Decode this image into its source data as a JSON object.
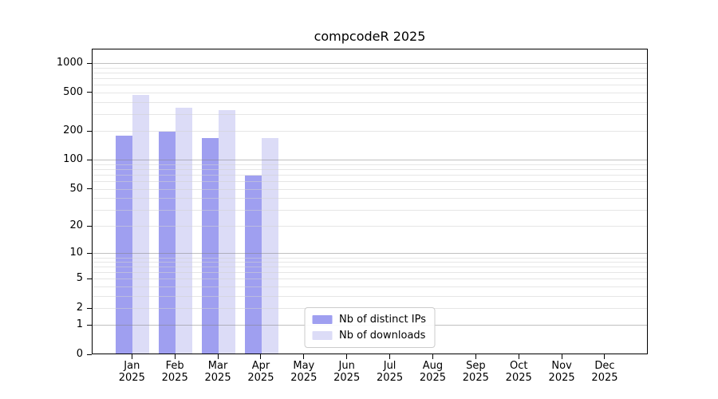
{
  "chart_data": {
    "type": "bar",
    "title": "compcodeR 2025",
    "categories": [
      "Jan 2025",
      "Feb 2025",
      "Mar 2025",
      "Apr 2025",
      "May 2025",
      "Jun 2025",
      "Jul 2025",
      "Aug 2025",
      "Sep 2025",
      "Oct 2025",
      "Nov 2025",
      "Dec 2025"
    ],
    "series": [
      {
        "name": "Nb of distinct IPs",
        "color": "#9f9ff0",
        "values": [
          182,
          199,
          173,
          70,
          null,
          null,
          null,
          null,
          null,
          null,
          null,
          null
        ]
      },
      {
        "name": "Nb of downloads",
        "color": "#dcdcf7",
        "values": [
          485,
          355,
          335,
          172,
          null,
          null,
          null,
          null,
          null,
          null,
          null,
          null
        ]
      }
    ],
    "y_ticks": [
      0,
      1,
      2,
      5,
      10,
      20,
      50,
      100,
      200,
      500,
      1000
    ],
    "y_scale": "log10(1+x)",
    "ylim": [
      0,
      1420
    ],
    "grid": true,
    "major_grid_values": [
      1,
      10,
      100,
      1000
    ],
    "legend_position": "lower center inside",
    "colors": {
      "axis": "#000000",
      "major_grid": "#c6c6c6",
      "minor_grid": "#eaeaea",
      "legend_border": "#cccccc",
      "background": "#ffffff"
    }
  }
}
